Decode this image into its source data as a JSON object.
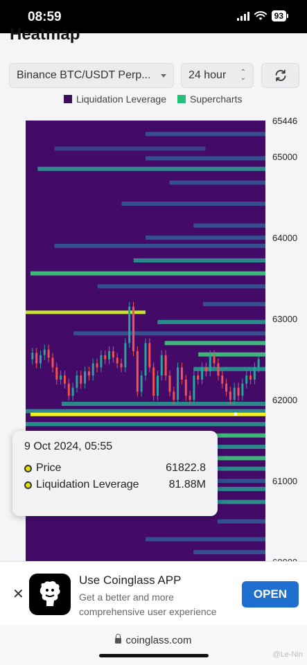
{
  "status_bar": {
    "time": "08:59",
    "battery": "93"
  },
  "heading": "Heatmap",
  "controls": {
    "pair_label": "Binance BTC/USDT Perp...",
    "period_label": "24 hour"
  },
  "legend": [
    {
      "label": "Liquidation Leverage",
      "color": "#3b0f5c"
    },
    {
      "label": "Supercharts",
      "color": "#22c27a"
    }
  ],
  "chart_data": {
    "type": "heatmap",
    "y_axis_ticks": [
      "65446",
      "65000",
      "64000",
      "63000",
      "62000",
      "61000",
      "60000"
    ],
    "ylim": [
      60000,
      65446
    ],
    "background_color": "#440a68",
    "highlight_price": 61822.8,
    "price_series": [
      62500,
      62580,
      62450,
      62550,
      62620,
      62520,
      62400,
      62250,
      62300,
      62200,
      62050,
      62150,
      62300,
      62200,
      62350,
      62300,
      62450,
      62400,
      62550,
      62500,
      62600,
      62520,
      62450,
      62400,
      62700,
      63150,
      62600,
      62100,
      62300,
      62700,
      62400,
      62050,
      62300,
      62550,
      62300,
      62100,
      62000,
      62400,
      62250,
      62050,
      62000,
      62300,
      62250,
      62400,
      62350,
      62550,
      62450,
      62300,
      62200,
      62100,
      62000,
      62150,
      62050,
      62200,
      62300,
      62250,
      62400,
      62500
    ],
    "liquidation_bands": [
      {
        "price": 65280,
        "x0": 0.5,
        "x1": 1.0,
        "level": 1
      },
      {
        "price": 65100,
        "x0": 0.12,
        "x1": 0.75,
        "level": 0
      },
      {
        "price": 64980,
        "x0": 0.5,
        "x1": 1.0,
        "level": 1
      },
      {
        "price": 64850,
        "x0": 0.05,
        "x1": 1.0,
        "level": 2
      },
      {
        "price": 64680,
        "x0": 0.6,
        "x1": 1.0,
        "level": 1
      },
      {
        "price": 64420,
        "x0": 0.4,
        "x1": 1.0,
        "level": 1
      },
      {
        "price": 64150,
        "x0": 0.7,
        "x1": 1.0,
        "level": 1
      },
      {
        "price": 64000,
        "x0": 0.5,
        "x1": 1.0,
        "level": 1
      },
      {
        "price": 63900,
        "x0": 0.12,
        "x1": 1.0,
        "level": 1
      },
      {
        "price": 63720,
        "x0": 0.45,
        "x1": 1.0,
        "level": 2
      },
      {
        "price": 63560,
        "x0": 0.02,
        "x1": 1.0,
        "level": 3
      },
      {
        "price": 63400,
        "x0": 0.3,
        "x1": 1.0,
        "level": 1
      },
      {
        "price": 63180,
        "x0": 0.74,
        "x1": 1.0,
        "level": 1
      },
      {
        "price": 63080,
        "x0": 0.0,
        "x1": 0.5,
        "level": 4
      },
      {
        "price": 62960,
        "x0": 0.55,
        "x1": 1.0,
        "level": 2
      },
      {
        "price": 62820,
        "x0": 0.2,
        "x1": 1.0,
        "level": 1
      },
      {
        "price": 62700,
        "x0": 0.58,
        "x1": 1.0,
        "level": 3
      },
      {
        "price": 62560,
        "x0": 0.72,
        "x1": 1.0,
        "level": 3
      },
      {
        "price": 62380,
        "x0": 0.7,
        "x1": 1.0,
        "level": 2
      },
      {
        "price": 61950,
        "x0": 0.15,
        "x1": 1.0,
        "level": 2
      },
      {
        "price": 61860,
        "x0": 0.0,
        "x1": 1.0,
        "level": 2
      },
      {
        "price": 61820,
        "x0": 0.02,
        "x1": 1.0,
        "level": 5
      },
      {
        "price": 61700,
        "x0": 0.0,
        "x1": 1.0,
        "level": 2
      },
      {
        "price": 61560,
        "x0": 0.0,
        "x1": 1.0,
        "level": 3
      },
      {
        "price": 61420,
        "x0": 0.4,
        "x1": 1.0,
        "level": 2
      },
      {
        "price": 61280,
        "x0": 0.5,
        "x1": 1.0,
        "level": 3
      },
      {
        "price": 61150,
        "x0": 0.55,
        "x1": 1.0,
        "level": 2
      },
      {
        "price": 61000,
        "x0": 0.8,
        "x1": 1.0,
        "level": 1
      },
      {
        "price": 60900,
        "x0": 0.75,
        "x1": 1.0,
        "level": 2
      },
      {
        "price": 60740,
        "x0": 0.7,
        "x1": 1.0,
        "level": 2
      },
      {
        "price": 60500,
        "x0": 0.8,
        "x1": 1.0,
        "level": 1
      },
      {
        "price": 60280,
        "x0": 0.5,
        "x1": 1.0,
        "level": 1
      },
      {
        "price": 60120,
        "x0": 0.7,
        "x1": 1.0,
        "level": 1
      }
    ],
    "level_colors": [
      "#3b3f8c",
      "#35508f",
      "#2c8a8c",
      "#3fb77b",
      "#c8e03a",
      "#f1f11c"
    ]
  },
  "tooltip": {
    "date": "9 Oct 2024, 05:55",
    "rows": [
      {
        "label": "Price",
        "value": "61822.8"
      },
      {
        "label": "Liquidation Leverage",
        "value": "81.88M"
      }
    ]
  },
  "app_banner": {
    "title": "Use Coinglass APP",
    "subtitle": "Get a better and more comprehensive user experience",
    "open_label": "OPEN"
  },
  "browser": {
    "url": "coinglass.com",
    "watermark": "@Le-Nin"
  }
}
